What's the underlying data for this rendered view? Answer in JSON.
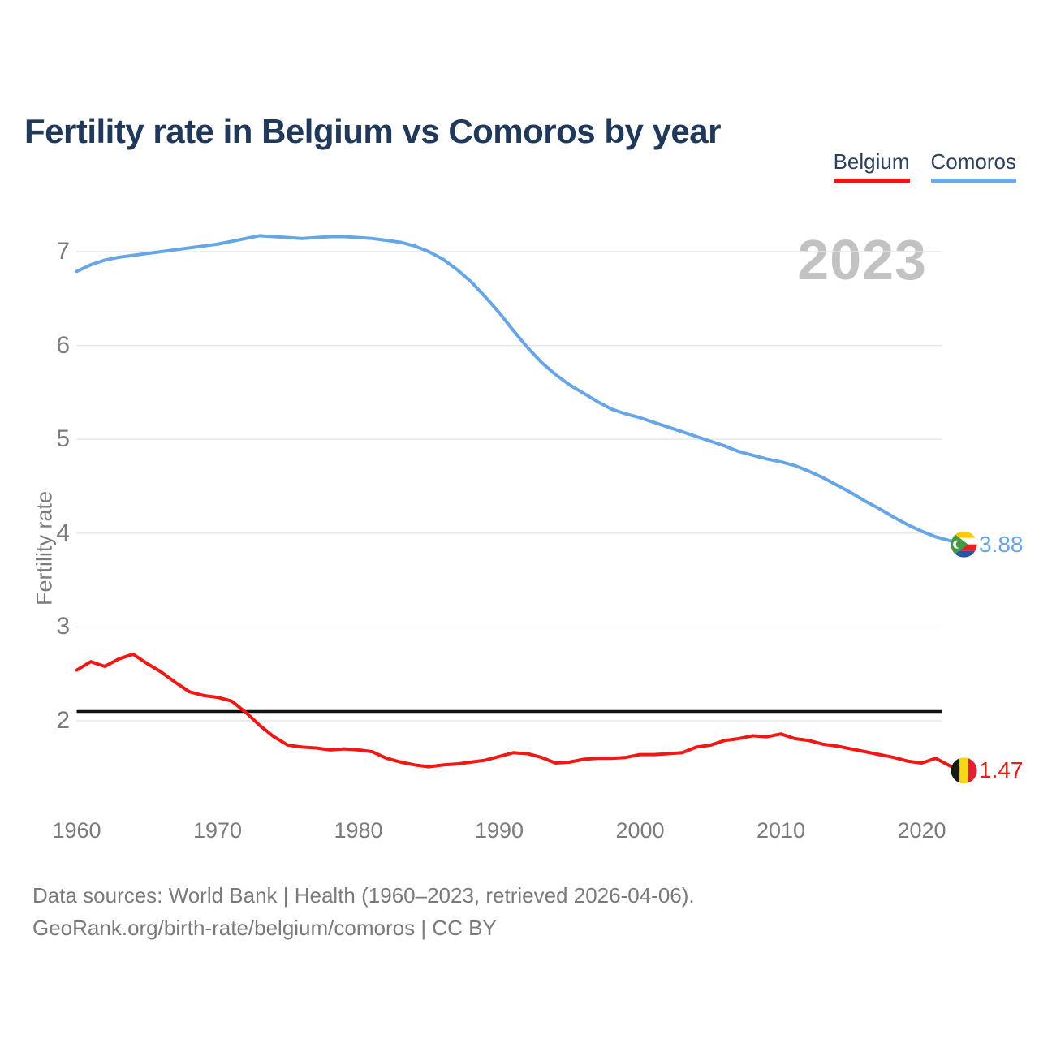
{
  "title": "Fertility rate in Belgium vs Comoros by year",
  "watermark": "2023",
  "legend": {
    "belgium_label": "Belgium",
    "comoros_label": "Comoros"
  },
  "y_axis": {
    "label": "Fertility rate",
    "ticks": [
      7,
      6,
      5,
      4,
      3,
      2
    ]
  },
  "x_axis": {
    "ticks": [
      1960,
      1970,
      1980,
      1990,
      2000,
      2010,
      2020
    ]
  },
  "footer": {
    "line1": "Data sources: World Bank | Health (1960–2023, retrieved 2026-04-06).",
    "line2": "GeoRank.org/birth-rate/belgium/comoros | CC BY"
  },
  "colors": {
    "belgium_line": "#ef1814",
    "comoros_line": "#66a5e6",
    "replacement_line": "#111111",
    "gridline": "#e5e5e5",
    "title_text": "#20395a",
    "axis_text": "#7b7b7b",
    "watermark_text": "#c2c2c2"
  },
  "chart_data": {
    "type": "line",
    "title": "Fertility rate in Belgium vs Comoros by year",
    "ylabel": "Fertility rate",
    "xlabel": "",
    "grid": true,
    "legend_position": "top-right",
    "xlim": [
      1960,
      2023
    ],
    "ylim": [
      1.3,
      7.3
    ],
    "replacement_line": 2.1,
    "x": [
      1960,
      1961,
      1962,
      1963,
      1964,
      1965,
      1966,
      1967,
      1968,
      1969,
      1970,
      1971,
      1972,
      1973,
      1974,
      1975,
      1976,
      1977,
      1978,
      1979,
      1980,
      1981,
      1982,
      1983,
      1984,
      1985,
      1986,
      1987,
      1988,
      1989,
      1990,
      1991,
      1992,
      1993,
      1994,
      1995,
      1996,
      1997,
      1998,
      1999,
      2000,
      2001,
      2002,
      2003,
      2004,
      2005,
      2006,
      2007,
      2008,
      2009,
      2010,
      2011,
      2012,
      2013,
      2014,
      2015,
      2016,
      2017,
      2018,
      2019,
      2020,
      2021,
      2022,
      2023
    ],
    "series": [
      {
        "id": "belgium",
        "name": "Belgium",
        "color": "#ef1814",
        "end_label": "1.47",
        "values": [
          2.54,
          2.63,
          2.58,
          2.66,
          2.71,
          2.61,
          2.52,
          2.41,
          2.31,
          2.27,
          2.25,
          2.21,
          2.09,
          1.95,
          1.83,
          1.74,
          1.72,
          1.71,
          1.69,
          1.7,
          1.69,
          1.67,
          1.6,
          1.56,
          1.53,
          1.51,
          1.53,
          1.54,
          1.56,
          1.58,
          1.62,
          1.66,
          1.65,
          1.61,
          1.55,
          1.56,
          1.59,
          1.6,
          1.6,
          1.61,
          1.64,
          1.64,
          1.65,
          1.66,
          1.72,
          1.74,
          1.79,
          1.81,
          1.84,
          1.83,
          1.86,
          1.81,
          1.79,
          1.75,
          1.73,
          1.7,
          1.67,
          1.64,
          1.61,
          1.57,
          1.55,
          1.6,
          1.52,
          1.47
        ]
      },
      {
        "id": "comoros",
        "name": "Comoros",
        "color": "#66a5e6",
        "end_label": "3.88",
        "values": [
          6.79,
          6.86,
          6.91,
          6.94,
          6.96,
          6.98,
          7.0,
          7.02,
          7.04,
          7.06,
          7.08,
          7.11,
          7.14,
          7.17,
          7.16,
          7.15,
          7.14,
          7.15,
          7.16,
          7.16,
          7.15,
          7.14,
          7.12,
          7.1,
          7.06,
          7.0,
          6.92,
          6.81,
          6.68,
          6.52,
          6.35,
          6.16,
          5.98,
          5.82,
          5.69,
          5.58,
          5.49,
          5.4,
          5.32,
          5.27,
          5.23,
          5.18,
          5.13,
          5.08,
          5.03,
          4.98,
          4.93,
          4.87,
          4.83,
          4.79,
          4.76,
          4.72,
          4.66,
          4.59,
          4.51,
          4.43,
          4.34,
          4.26,
          4.17,
          4.09,
          4.02,
          3.96,
          3.92,
          3.88
        ]
      }
    ]
  }
}
